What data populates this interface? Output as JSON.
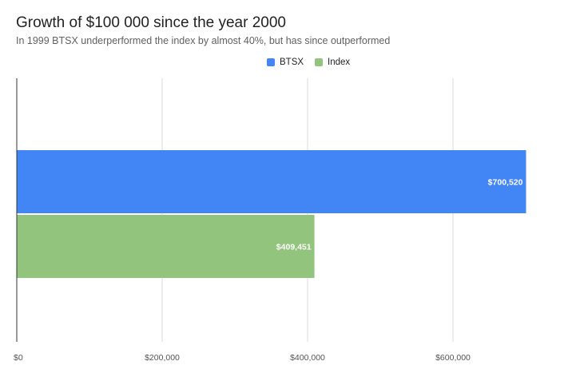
{
  "chart_data": {
    "type": "bar",
    "orientation": "horizontal",
    "title": "Growth of $100 000 since the year 2000",
    "subtitle": "In 1999 BTSX underperformed the index by almost 40%, but has since outperformed",
    "xlabel": "",
    "ylabel": "",
    "xlim": [
      0,
      700000
    ],
    "x_ticks": [
      {
        "value": 0,
        "label": "$0"
      },
      {
        "value": 200000,
        "label": "$200,000"
      },
      {
        "value": 400000,
        "label": "$400,000"
      },
      {
        "value": 600000,
        "label": "$600,000"
      }
    ],
    "grid": true,
    "legend_position": "top-center",
    "series": [
      {
        "name": "BTSX",
        "value": 700520,
        "label": "$700,520",
        "color": "#4285f4"
      },
      {
        "name": "Index",
        "value": 409451,
        "label": "$409,451",
        "color": "#93c47d"
      }
    ]
  }
}
